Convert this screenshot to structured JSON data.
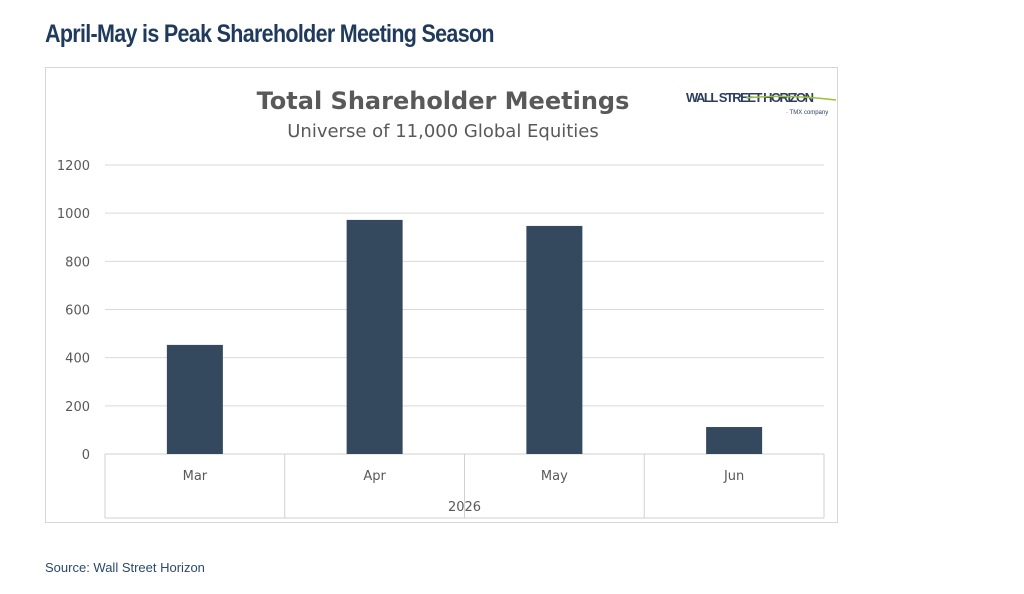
{
  "headline": "April-May is Peak Shareholder Meeting Season",
  "source": "Source: Wall Street Horizon",
  "logo": {
    "text": "WALL STREET HORIZON",
    "sub": "a TMX company"
  },
  "colors": {
    "bar": "#34495e",
    "headline": "#1f3a5c",
    "grid": "#d9d9d9"
  },
  "chart_data": {
    "type": "bar",
    "title": "Total Shareholder Meetings",
    "subtitle": "Universe of 11,000 Global Equities",
    "categories": [
      "Mar",
      "Apr",
      "May",
      "Jun"
    ],
    "group_label": "2026",
    "values": [
      453,
      972,
      947,
      112
    ],
    "yticks": [
      "0",
      "200",
      "400",
      "600",
      "800",
      "1000",
      "1200"
    ],
    "ylim": [
      0,
      1200
    ],
    "grid": true
  }
}
